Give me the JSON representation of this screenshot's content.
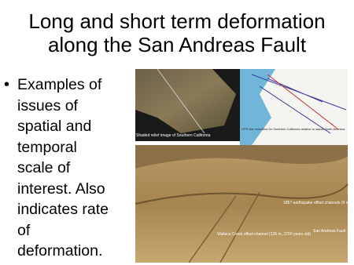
{
  "slide": {
    "title_lines": [
      "Long and short term deformation",
      "along the San Andreas Fault"
    ],
    "bullet_marker": "•",
    "bullet_lines": [
      "Examples of",
      "issues of",
      "spatial and",
      "temporal",
      "scale of",
      "interest.  Also",
      "indicates rate",
      "of",
      "deformation."
    ],
    "relief_image": {
      "caption": "Shaded relief image of Southern California"
    },
    "gps_image": {
      "caption": "GPS site velocities for Southern California relative to stable North America"
    },
    "photo": {
      "label_offset": "1857 earthquake offset channels (9 m)",
      "label_wallace": "Wallace Creek offset channel (135 m, 3700 years old)",
      "label_fault": "San Andreas Fault"
    }
  }
}
